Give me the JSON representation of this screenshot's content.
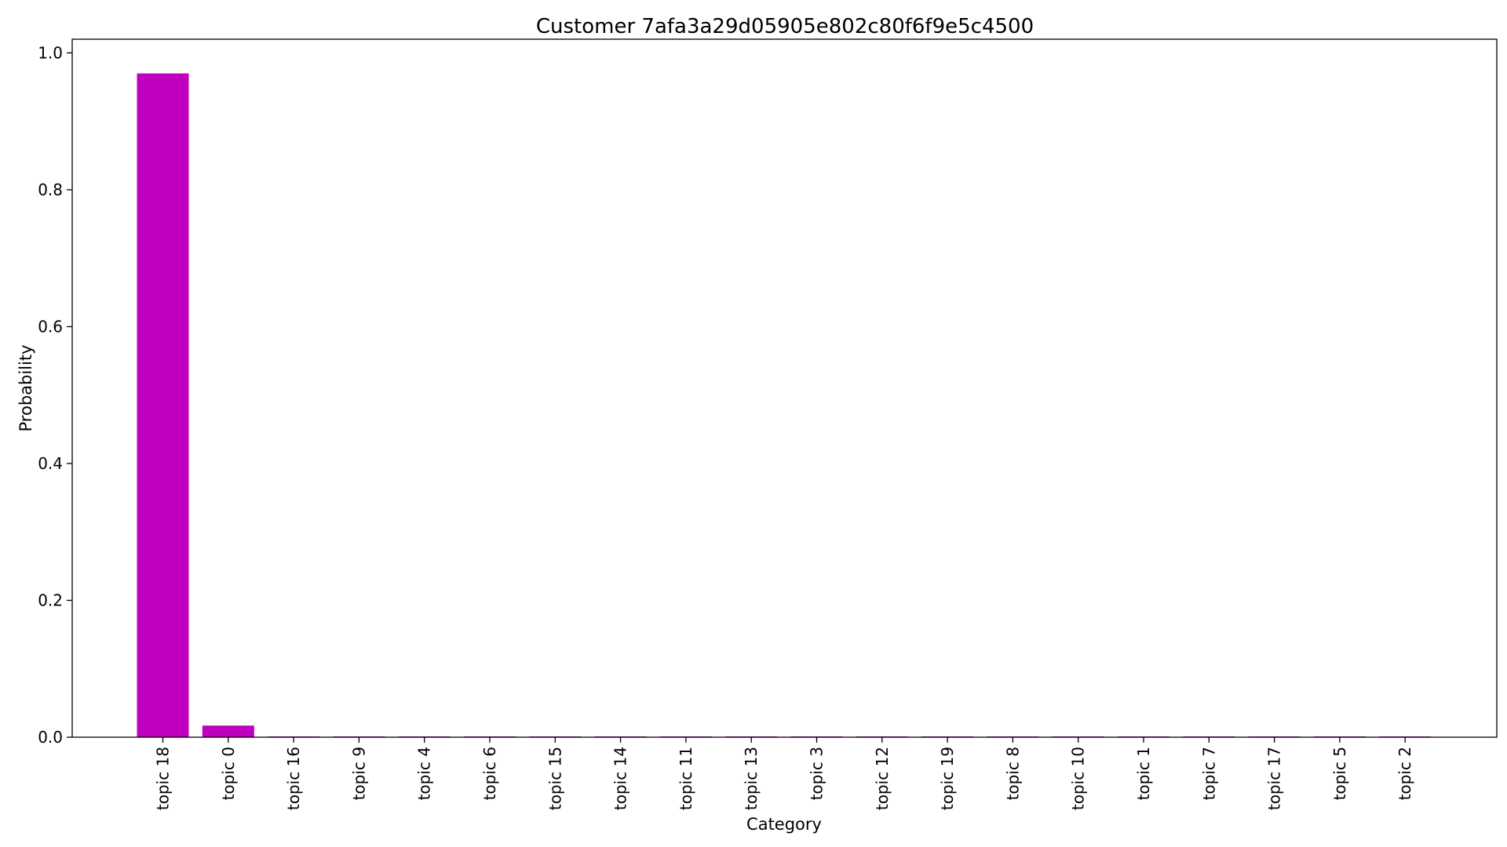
{
  "chart_data": {
    "type": "bar",
    "title": "Customer 7afa3a29d05905e802c80f6f9e5c4500",
    "xlabel": "Category",
    "ylabel": "Probability",
    "categories": [
      "topic 18",
      "topic 0",
      "topic 16",
      "topic 9",
      "topic 4",
      "topic 6",
      "topic 15",
      "topic 14",
      "topic 11",
      "topic 13",
      "topic 3",
      "topic 12",
      "topic 19",
      "topic 8",
      "topic 10",
      "topic 1",
      "topic 7",
      "topic 17",
      "topic 5",
      "topic 2"
    ],
    "values": [
      0.97,
      0.017,
      0.001,
      0.001,
      0.001,
      0.001,
      0.001,
      0.001,
      0.001,
      0.001,
      0.001,
      0.001,
      0.001,
      0.001,
      0.001,
      0.001,
      0.001,
      0.001,
      0.001,
      0.001
    ],
    "ylim": [
      0,
      1.02
    ],
    "yticks": [
      "0.0",
      "0.2",
      "0.4",
      "0.6",
      "0.8",
      "1.0"
    ],
    "ytick_values": [
      0,
      0.2,
      0.4,
      0.6,
      0.8,
      1.0
    ],
    "grid": false,
    "bar_color": "#bf00bf"
  }
}
